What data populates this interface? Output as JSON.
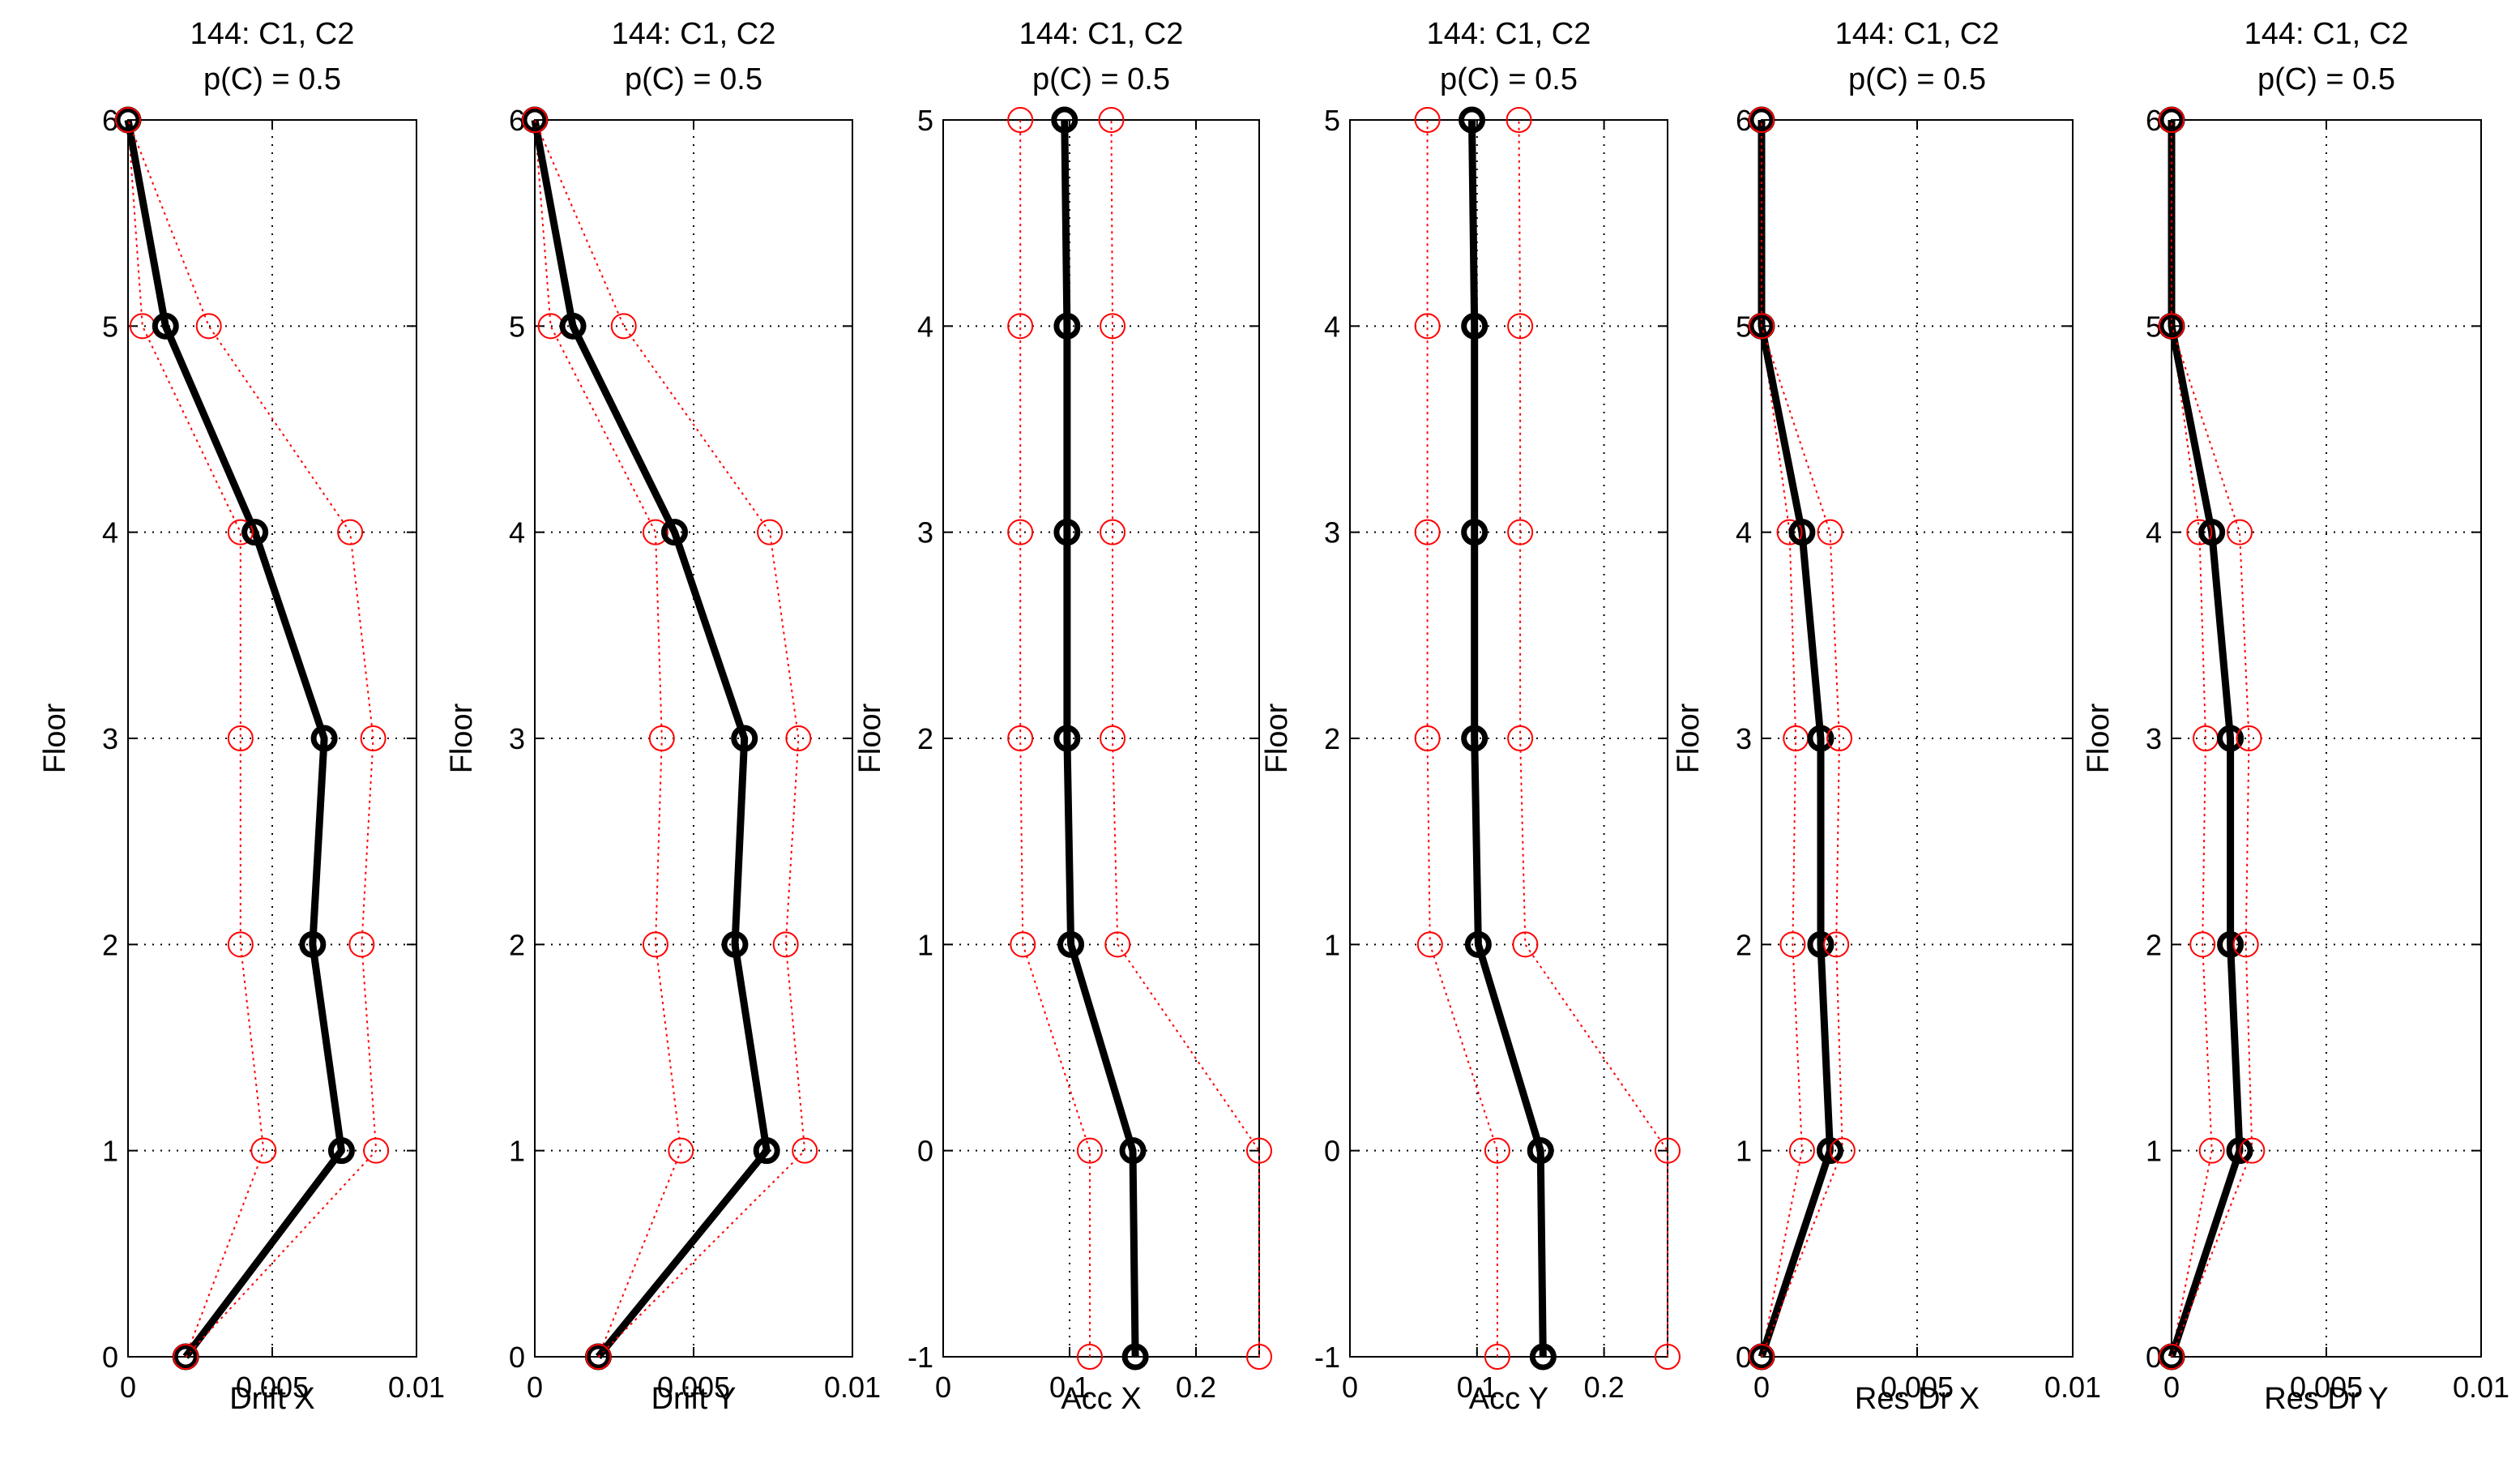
{
  "chart_data": [
    {
      "type": "line",
      "title": [
        "144: C1, C2",
        "p(C) = 0.5"
      ],
      "xlabel": "Drift X",
      "ylabel": "Floor",
      "xlim": [
        0,
        0.01
      ],
      "ylim": [
        0,
        6
      ],
      "xticks": [
        0,
        0.005,
        0.01
      ],
      "xtick_labels": [
        "0",
        "0.005",
        "0.01"
      ],
      "yticks": [
        0,
        1,
        2,
        3,
        4,
        5,
        6
      ],
      "ytick_labels": [
        "0",
        "1",
        "2",
        "3",
        "4",
        "5",
        "6"
      ],
      "grid": true,
      "series": [
        {
          "role": "lower",
          "x": [
            0.002,
            0.0047,
            0.0039,
            0.0039,
            0.0039,
            0.0005,
            0.0
          ],
          "y": [
            0,
            1,
            2,
            3,
            4,
            5,
            6
          ]
        },
        {
          "role": "median",
          "x": [
            0.002,
            0.0074,
            0.0064,
            0.0068,
            0.0044,
            0.0013,
            0.0
          ],
          "y": [
            0,
            1,
            2,
            3,
            4,
            5,
            6
          ]
        },
        {
          "role": "upper",
          "x": [
            0.002,
            0.0086,
            0.0081,
            0.0085,
            0.0077,
            0.0028,
            0.0
          ],
          "y": [
            0,
            1,
            2,
            3,
            4,
            5,
            6
          ]
        }
      ]
    },
    {
      "type": "line",
      "title": [
        "144: C1, C2",
        "p(C) = 0.5"
      ],
      "xlabel": "Drift Y",
      "ylabel": "Floor",
      "xlim": [
        0,
        0.01
      ],
      "ylim": [
        0,
        6
      ],
      "xticks": [
        0,
        0.005,
        0.01
      ],
      "xtick_labels": [
        "0",
        "0.005",
        "0.01"
      ],
      "yticks": [
        0,
        1,
        2,
        3,
        4,
        5,
        6
      ],
      "ytick_labels": [
        "0",
        "1",
        "2",
        "3",
        "4",
        "5",
        "6"
      ],
      "grid": true,
      "series": [
        {
          "role": "lower",
          "x": [
            0.002,
            0.0046,
            0.0038,
            0.004,
            0.0038,
            0.0005,
            0.0
          ],
          "y": [
            0,
            1,
            2,
            3,
            4,
            5,
            6
          ]
        },
        {
          "role": "median",
          "x": [
            0.002,
            0.0073,
            0.0063,
            0.0066,
            0.0044,
            0.0012,
            0.0
          ],
          "y": [
            0,
            1,
            2,
            3,
            4,
            5,
            6
          ]
        },
        {
          "role": "upper",
          "x": [
            0.002,
            0.0085,
            0.0079,
            0.0083,
            0.0074,
            0.0028,
            0.0
          ],
          "y": [
            0,
            1,
            2,
            3,
            4,
            5,
            6
          ]
        }
      ]
    },
    {
      "type": "line",
      "title": [
        "144: C1, C2",
        "p(C) = 0.5"
      ],
      "xlabel": "Acc X",
      "ylabel": "Floor",
      "xlim": [
        0,
        0.25
      ],
      "ylim": [
        -1,
        5
      ],
      "xticks": [
        0,
        0.1,
        0.2
      ],
      "xtick_labels": [
        "0",
        "0.1",
        "0.2"
      ],
      "yticks": [
        -1,
        0,
        1,
        2,
        3,
        4,
        5
      ],
      "ytick_labels": [
        "-1",
        "0",
        "1",
        "2",
        "3",
        "4",
        "5"
      ],
      "grid": true,
      "series": [
        {
          "role": "lower",
          "x": [
            0.116,
            0.116,
            0.063,
            0.061,
            0.061,
            0.061,
            0.061
          ],
          "y": [
            -1,
            0,
            1,
            2,
            3,
            4,
            5
          ]
        },
        {
          "role": "median",
          "x": [
            0.152,
            0.15,
            0.101,
            0.098,
            0.098,
            0.098,
            0.096
          ],
          "y": [
            -1,
            0,
            1,
            2,
            3,
            4,
            5
          ]
        },
        {
          "role": "upper",
          "x": [
            0.25,
            0.25,
            0.138,
            0.134,
            0.134,
            0.134,
            0.133
          ],
          "y": [
            -1,
            0,
            1,
            2,
            3,
            4,
            5
          ]
        }
      ]
    },
    {
      "type": "line",
      "title": [
        "144: C1, C2",
        "p(C) = 0.5"
      ],
      "xlabel": "Acc Y",
      "ylabel": "Floor",
      "xlim": [
        0,
        0.25
      ],
      "ylim": [
        -1,
        5
      ],
      "xticks": [
        0,
        0.1,
        0.2
      ],
      "xtick_labels": [
        "0",
        "0.1",
        "0.2"
      ],
      "yticks": [
        -1,
        0,
        1,
        2,
        3,
        4,
        5
      ],
      "ytick_labels": [
        "-1",
        "0",
        "1",
        "2",
        "3",
        "4",
        "5"
      ],
      "grid": true,
      "series": [
        {
          "role": "lower",
          "x": [
            0.116,
            0.116,
            0.063,
            0.061,
            0.061,
            0.061,
            0.061
          ],
          "y": [
            -1,
            0,
            1,
            2,
            3,
            4,
            5
          ]
        },
        {
          "role": "median",
          "x": [
            0.152,
            0.15,
            0.101,
            0.098,
            0.098,
            0.098,
            0.096
          ],
          "y": [
            -1,
            0,
            1,
            2,
            3,
            4,
            5
          ]
        },
        {
          "role": "upper",
          "x": [
            0.25,
            0.25,
            0.138,
            0.134,
            0.134,
            0.134,
            0.133
          ],
          "y": [
            -1,
            0,
            1,
            2,
            3,
            4,
            5
          ]
        }
      ]
    },
    {
      "type": "line",
      "title": [
        "144: C1, C2",
        "p(C) = 0.5"
      ],
      "xlabel": "Res Dr X",
      "ylabel": "Floor",
      "xlim": [
        0,
        0.01
      ],
      "ylim": [
        0,
        6
      ],
      "xticks": [
        0,
        0.005,
        0.01
      ],
      "xtick_labels": [
        "0",
        "0.005",
        "0.01"
      ],
      "yticks": [
        0,
        1,
        2,
        3,
        4,
        5,
        6
      ],
      "ytick_labels": [
        "0",
        "1",
        "2",
        "3",
        "4",
        "5",
        "6"
      ],
      "grid": true,
      "series": [
        {
          "role": "lower",
          "x": [
            0.0,
            0.0013,
            0.001,
            0.0011,
            0.0009,
            0.0,
            0.0
          ],
          "y": [
            0,
            1,
            2,
            3,
            4,
            5,
            6
          ]
        },
        {
          "role": "median",
          "x": [
            0.0,
            0.0022,
            0.0019,
            0.0019,
            0.0013,
            0.0,
            0.0
          ],
          "y": [
            0,
            1,
            2,
            3,
            4,
            5,
            6
          ]
        },
        {
          "role": "upper",
          "x": [
            0.0,
            0.0026,
            0.0024,
            0.0025,
            0.0022,
            0.0,
            0.0
          ],
          "y": [
            0,
            1,
            2,
            3,
            4,
            5,
            6
          ]
        }
      ]
    },
    {
      "type": "line",
      "title": [
        "144: C1, C2",
        "p(C) = 0.5"
      ],
      "xlabel": "Res Dr Y",
      "ylabel": "Floor",
      "xlim": [
        0,
        0.01
      ],
      "ylim": [
        0,
        6
      ],
      "xticks": [
        0,
        0.005,
        0.01
      ],
      "xtick_labels": [
        "0",
        "0.005",
        "0.01"
      ],
      "yticks": [
        0,
        1,
        2,
        3,
        4,
        5,
        6
      ],
      "ytick_labels": [
        "0",
        "1",
        "2",
        "3",
        "4",
        "5",
        "6"
      ],
      "grid": true,
      "series": [
        {
          "role": "lower",
          "x": [
            0.0,
            0.0013,
            0.001,
            0.0011,
            0.0009,
            0.0,
            0.0
          ],
          "y": [
            0,
            1,
            2,
            3,
            4,
            5,
            6
          ]
        },
        {
          "role": "median",
          "x": [
            0.0,
            0.0022,
            0.0019,
            0.0019,
            0.0013,
            0.0,
            0.0
          ],
          "y": [
            0,
            1,
            2,
            3,
            4,
            5,
            6
          ]
        },
        {
          "role": "upper",
          "x": [
            0.0,
            0.0026,
            0.0024,
            0.0025,
            0.0022,
            0.0,
            0.0
          ],
          "y": [
            0,
            1,
            2,
            3,
            4,
            5,
            6
          ]
        }
      ]
    }
  ],
  "colors": {
    "median": "#000000",
    "bounds": "#ff0000",
    "grid": "#000000",
    "background": "#ffffff"
  }
}
